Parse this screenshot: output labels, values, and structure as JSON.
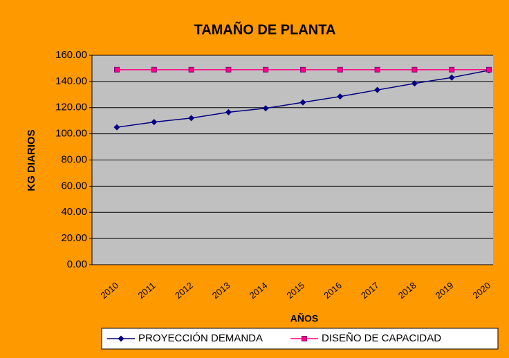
{
  "chart_data": {
    "type": "line",
    "title": "TAMAÑO DE PLANTA",
    "x_label": "AÑOS",
    "y_label": "KG DIARIOS",
    "categories": [
      "2010",
      "2011",
      "2012",
      "2013",
      "2014",
      "2015",
      "2016",
      "2017",
      "2018",
      "2019",
      "2020"
    ],
    "series": [
      {
        "name": "PROYECCIÓN DEMANDA",
        "color": "#000080",
        "marker": "diamond",
        "values": [
          105,
          109,
          112,
          116.5,
          119.5,
          124,
          128.5,
          133.5,
          138.5,
          143,
          148.5
        ]
      },
      {
        "name": "DISEÑO DE CAPACIDAD",
        "color": "#ff0080",
        "marker": "square",
        "values": [
          149,
          149,
          149,
          149,
          149,
          149,
          149,
          149,
          149,
          149,
          149
        ]
      }
    ],
    "ylim": [
      0,
      160
    ],
    "yticks": [
      {
        "value": 0,
        "label": "0.00"
      },
      {
        "value": 20,
        "label": "20.00"
      },
      {
        "value": 40,
        "label": "40.00"
      },
      {
        "value": 60,
        "label": "60.00"
      },
      {
        "value": 80,
        "label": "80.00"
      },
      {
        "value": 100,
        "label": "100.00"
      },
      {
        "value": 120,
        "label": "120.00"
      },
      {
        "value": 140,
        "label": "140.00"
      },
      {
        "value": 160,
        "label": "160.00"
      }
    ],
    "grid": true,
    "legend": "bottom"
  }
}
